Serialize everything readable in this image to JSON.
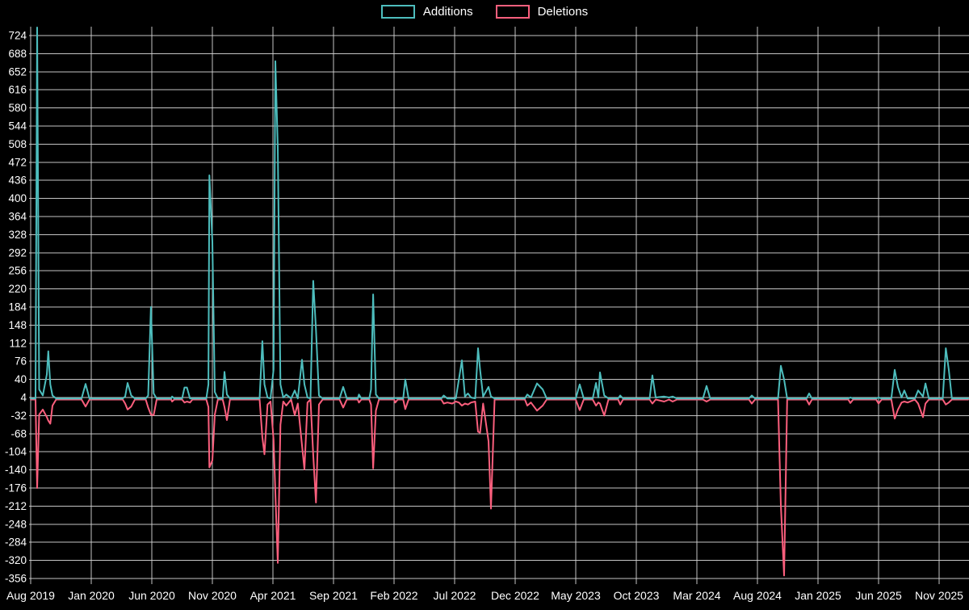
{
  "colors": {
    "background": "#000000",
    "grid": "#cfcfcf",
    "axis_text": "#ffffff",
    "additions": "#4dbdbd",
    "deletions": "#fb5f7d"
  },
  "chart_data": {
    "type": "line",
    "title": "",
    "xlabel": "",
    "ylabel": "",
    "legend_position": "top-center",
    "grid": true,
    "ylim": [
      -356,
      724
    ],
    "y_ticks": [
      724,
      688,
      652,
      616,
      580,
      544,
      508,
      472,
      436,
      400,
      364,
      328,
      292,
      256,
      220,
      184,
      148,
      112,
      76,
      40,
      4,
      -32,
      -68,
      -104,
      -140,
      -176,
      -212,
      -248,
      -284,
      -320,
      -356
    ],
    "x_ticks": [
      "Aug 2019",
      "Jan 2020",
      "Jun 2020",
      "Nov 2020",
      "Apr 2021",
      "Sep 2021",
      "Feb 2022",
      "Jul 2022",
      "Dec 2022",
      "May 2023",
      "Oct 2023",
      "Mar 2024",
      "Aug 2024",
      "Jan 2025",
      "Jun 2025",
      "Nov 2025"
    ],
    "x_tick_interval_months": 5,
    "x_range_months": [
      0,
      77.4
    ],
    "series": [
      {
        "name": "Additions",
        "color": "#4dbdbd"
      },
      {
        "name": "Deletions",
        "color": "#fb5f7d"
      }
    ],
    "points_format": [
      "months_since_aug_2019",
      "additions",
      "deletions"
    ],
    "points": [
      [
        0.0,
        2,
        0
      ],
      [
        0.4,
        2,
        0
      ],
      [
        0.53,
        740,
        -176
      ],
      [
        0.7,
        20,
        -30
      ],
      [
        1.0,
        8,
        -20
      ],
      [
        1.33,
        50,
        -35
      ],
      [
        1.45,
        96,
        -42
      ],
      [
        1.62,
        30,
        -48
      ],
      [
        1.8,
        8,
        -12
      ],
      [
        2.1,
        2,
        0
      ],
      [
        4.2,
        2,
        0
      ],
      [
        4.53,
        31,
        -14
      ],
      [
        4.85,
        2,
        0
      ],
      [
        7.6,
        2,
        0
      ],
      [
        7.8,
        6,
        -8
      ],
      [
        8.0,
        33,
        -20
      ],
      [
        8.3,
        8,
        -14
      ],
      [
        8.6,
        2,
        0
      ],
      [
        9.5,
        2,
        0
      ],
      [
        9.7,
        8,
        -16
      ],
      [
        9.93,
        184,
        -30
      ],
      [
        10.15,
        12,
        -31
      ],
      [
        10.4,
        2,
        0
      ],
      [
        11.6,
        2,
        0
      ],
      [
        11.67,
        6,
        -4
      ],
      [
        11.85,
        2,
        0
      ],
      [
        12.5,
        2,
        0
      ],
      [
        12.7,
        24,
        -6
      ],
      [
        12.9,
        24,
        -4
      ],
      [
        13.15,
        2,
        -6
      ],
      [
        13.35,
        2,
        0
      ],
      [
        14.5,
        2,
        0
      ],
      [
        14.67,
        30,
        -15
      ],
      [
        14.75,
        446,
        -135
      ],
      [
        15.0,
        314,
        -121
      ],
      [
        15.2,
        15,
        -30
      ],
      [
        15.45,
        2,
        0
      ],
      [
        15.85,
        2,
        0
      ],
      [
        16.0,
        55,
        -15
      ],
      [
        16.2,
        10,
        -41
      ],
      [
        16.45,
        2,
        0
      ],
      [
        18.9,
        2,
        0
      ],
      [
        19.13,
        116,
        -75
      ],
      [
        19.3,
        30,
        -109
      ],
      [
        19.55,
        4,
        -10
      ],
      [
        19.8,
        2,
        -4
      ],
      [
        20.05,
        60,
        -80
      ],
      [
        20.2,
        673,
        -185
      ],
      [
        20.4,
        501,
        -325
      ],
      [
        20.62,
        30,
        -50
      ],
      [
        20.85,
        4,
        -4
      ],
      [
        21.1,
        10,
        -12
      ],
      [
        21.5,
        2,
        0
      ],
      [
        21.8,
        18,
        -31
      ],
      [
        22.05,
        2,
        -8
      ],
      [
        22.4,
        79,
        -91
      ],
      [
        22.6,
        30,
        -139
      ],
      [
        22.85,
        4,
        -6
      ],
      [
        23.1,
        2,
        0
      ],
      [
        23.33,
        236,
        -110
      ],
      [
        23.55,
        139,
        -205
      ],
      [
        23.8,
        8,
        -10
      ],
      [
        24.1,
        2,
        0
      ],
      [
        25.5,
        2,
        0
      ],
      [
        25.8,
        25,
        -16
      ],
      [
        26.1,
        2,
        0
      ],
      [
        27.0,
        2,
        0
      ],
      [
        27.1,
        10,
        -6
      ],
      [
        27.3,
        2,
        0
      ],
      [
        27.95,
        2,
        0
      ],
      [
        28.1,
        20,
        -10
      ],
      [
        28.27,
        209,
        -137
      ],
      [
        28.5,
        10,
        -22
      ],
      [
        28.75,
        2,
        0
      ],
      [
        30.0,
        2,
        0
      ],
      [
        30.1,
        3,
        -6
      ],
      [
        30.3,
        2,
        0
      ],
      [
        30.75,
        2,
        0
      ],
      [
        30.93,
        40,
        -19
      ],
      [
        31.2,
        2,
        0
      ],
      [
        33.9,
        2,
        0
      ],
      [
        34.1,
        8,
        -8
      ],
      [
        34.4,
        2,
        -6
      ],
      [
        34.8,
        2,
        -8
      ],
      [
        35.1,
        2,
        -4
      ],
      [
        35.35,
        40,
        -6
      ],
      [
        35.6,
        78,
        -12
      ],
      [
        35.85,
        6,
        -8
      ],
      [
        36.1,
        12,
        -10
      ],
      [
        36.35,
        4,
        -6
      ],
      [
        36.7,
        2,
        -4
      ],
      [
        36.93,
        102,
        -64
      ],
      [
        37.1,
        60,
        -66
      ],
      [
        37.35,
        6,
        -8
      ],
      [
        37.8,
        25,
        -83
      ],
      [
        38.0,
        6,
        -217
      ],
      [
        38.3,
        2,
        0
      ],
      [
        40.8,
        2,
        0
      ],
      [
        41.0,
        10,
        -12
      ],
      [
        41.3,
        4,
        -6
      ],
      [
        41.8,
        32,
        -22
      ],
      [
        42.27,
        20,
        -12
      ],
      [
        42.6,
        2,
        0
      ],
      [
        45.0,
        2,
        0
      ],
      [
        45.33,
        30,
        -21
      ],
      [
        45.66,
        2,
        0
      ],
      [
        46.4,
        2,
        0
      ],
      [
        46.67,
        33,
        -12
      ],
      [
        46.87,
        4,
        -6
      ],
      [
        47.0,
        54,
        -8
      ],
      [
        47.35,
        8,
        -32
      ],
      [
        47.7,
        2,
        0
      ],
      [
        48.5,
        2,
        0
      ],
      [
        48.67,
        8,
        -10
      ],
      [
        48.9,
        2,
        0
      ],
      [
        51.1,
        2,
        0
      ],
      [
        51.33,
        48,
        -8
      ],
      [
        51.6,
        4,
        0
      ],
      [
        52.3,
        6,
        -4
      ],
      [
        52.7,
        4,
        0
      ],
      [
        53.0,
        6,
        -4
      ],
      [
        53.35,
        2,
        0
      ],
      [
        55.5,
        2,
        0
      ],
      [
        55.8,
        27,
        -4
      ],
      [
        56.1,
        2,
        0
      ],
      [
        59.3,
        2,
        0
      ],
      [
        59.53,
        8,
        -8
      ],
      [
        59.8,
        2,
        0
      ],
      [
        61.7,
        2,
        0
      ],
      [
        61.93,
        67,
        -210
      ],
      [
        62.2,
        40,
        -350
      ],
      [
        62.45,
        2,
        0
      ],
      [
        64.05,
        2,
        0
      ],
      [
        64.27,
        12,
        -10
      ],
      [
        64.5,
        2,
        0
      ],
      [
        67.5,
        2,
        0
      ],
      [
        67.67,
        4,
        -7
      ],
      [
        67.9,
        2,
        0
      ],
      [
        69.8,
        2,
        0
      ],
      [
        70.0,
        4,
        -8
      ],
      [
        70.25,
        2,
        0
      ],
      [
        71.05,
        2,
        0
      ],
      [
        71.33,
        59,
        -38
      ],
      [
        71.6,
        25,
        -20
      ],
      [
        71.9,
        4,
        -6
      ],
      [
        72.13,
        18,
        -4
      ],
      [
        72.4,
        2,
        -6
      ],
      [
        73.0,
        2,
        0
      ],
      [
        73.27,
        18,
        -8
      ],
      [
        73.67,
        6,
        -35
      ],
      [
        73.87,
        32,
        -8
      ],
      [
        74.15,
        2,
        0
      ],
      [
        75.3,
        2,
        0
      ],
      [
        75.55,
        102,
        -10
      ],
      [
        75.8,
        59,
        -6
      ],
      [
        76.05,
        2,
        0
      ],
      [
        77.4,
        2,
        0
      ]
    ]
  }
}
